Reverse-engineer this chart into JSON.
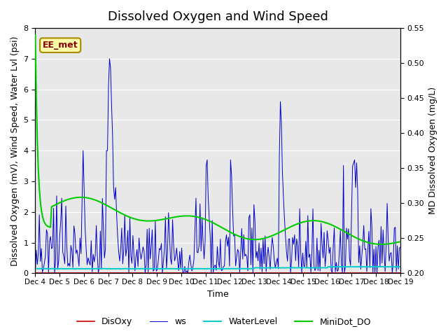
{
  "title": "Dissolved Oxygen and Wind Speed",
  "ylabel_left": "Dissolved Oxygen (mV), Wind Speed, Water Lvl (psi)",
  "ylabel_right": "MD Dissolved Oxygen (mg/L)",
  "xlabel": "Time",
  "ylim_left": [
    0.0,
    8.0
  ],
  "ylim_right": [
    0.2,
    0.55
  ],
  "yticks_left": [
    0.0,
    1.0,
    2.0,
    3.0,
    4.0,
    5.0,
    6.0,
    7.0,
    8.0
  ],
  "yticks_right": [
    0.2,
    0.25,
    0.3,
    0.35,
    0.4,
    0.45,
    0.5,
    0.55
  ],
  "annotation_text": "EE_met",
  "colors": {
    "DisOxy": "#cc0000",
    "ws": "#0000cc",
    "WaterLevel": "#00cccc",
    "MiniDot_DO": "#00cc00"
  },
  "legend_labels": [
    "DisOxy",
    "ws",
    "WaterLevel",
    "MiniDot_DO"
  ],
  "background_color": "#e8e8e8",
  "title_fontsize": 13,
  "label_fontsize": 9,
  "tick_fontsize": 8
}
